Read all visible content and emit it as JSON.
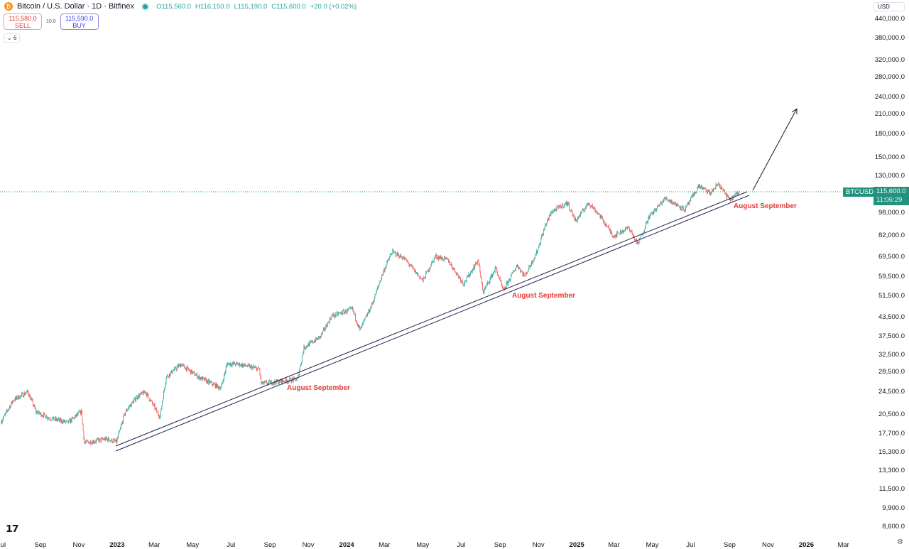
{
  "header": {
    "symbol_title": "Bitcoin / U.S. Dollar · 1D · Bitfinex",
    "open": "O115,560.0",
    "high": "H116,150.0",
    "low": "L115,190.0",
    "close": "C115,600.0",
    "change": "+20.0 (+0.02%)",
    "coin_glyph": "₿"
  },
  "trade": {
    "sell_price": "115,580.0",
    "sell_label": "SELL",
    "spread": "10.0",
    "buy_price": "115,590.0",
    "buy_label": "BUY"
  },
  "indicators_toggle": "6",
  "currency": "USD",
  "price_tag": {
    "symbol": "BTCUSD",
    "price": "115,600.0",
    "countdown": "11:06:29"
  },
  "annotations": [
    "August September",
    "August September",
    "August September"
  ],
  "colors": {
    "up": "#26a69a",
    "down": "#ef5350",
    "annotation": "#e53935",
    "tag": "#22917e"
  },
  "logo": "TV",
  "chart_data": {
    "type": "candlestick",
    "scale": "log",
    "y_ticks": [
      440000,
      380000,
      320000,
      280000,
      240000,
      210000,
      180000,
      150000,
      130000,
      98000,
      82000,
      69500,
      59500,
      51500,
      43500,
      37500,
      32500,
      28500,
      24500,
      20500,
      17700,
      15300,
      13300,
      11500,
      9900,
      8600
    ],
    "y_tick_labels": [
      "440,000.0",
      "380,000.0",
      "320,000.0",
      "280,000.0",
      "240,000.0",
      "210,000.0",
      "180,000.0",
      "150,000.0",
      "130,000.0",
      "98,000.0",
      "82,000.0",
      "69,500.0",
      "59,500.0",
      "51,500.0",
      "43,500.0",
      "37,500.0",
      "32,500.0",
      "28,500.0",
      "24,500.0",
      "20,500.0",
      "17,700.0",
      "15,300.0",
      "13,300.0",
      "11,500.0",
      "9,900.0",
      "8,600.0"
    ],
    "x_ticks": [
      [
        "2022-07-01",
        "Jul"
      ],
      [
        "2022-09-01",
        "Sep"
      ],
      [
        "2022-11-01",
        "Nov"
      ],
      [
        "2023-01-01",
        "2023"
      ],
      [
        "2023-03-01",
        "Mar"
      ],
      [
        "2023-05-01",
        "May"
      ],
      [
        "2023-07-01",
        "Jul"
      ],
      [
        "2023-09-01",
        "Sep"
      ],
      [
        "2023-11-01",
        "Nov"
      ],
      [
        "2024-01-01",
        "2024"
      ],
      [
        "2024-03-01",
        "Mar"
      ],
      [
        "2024-05-01",
        "May"
      ],
      [
        "2024-07-01",
        "Jul"
      ],
      [
        "2024-09-01",
        "Sep"
      ],
      [
        "2024-11-01",
        "Nov"
      ],
      [
        "2025-01-01",
        "2025"
      ],
      [
        "2025-03-01",
        "Mar"
      ],
      [
        "2025-05-01",
        "May"
      ],
      [
        "2025-07-01",
        "Jul"
      ],
      [
        "2025-09-01",
        "Sep"
      ],
      [
        "2025-11-01",
        "Nov"
      ],
      [
        "2026-01-01",
        "2026"
      ],
      [
        "2026-03-01",
        "Mar"
      ]
    ],
    "close_anchors": [
      [
        "2022-07-01",
        19500
      ],
      [
        "2022-07-20",
        23000
      ],
      [
        "2022-08-12",
        24500
      ],
      [
        "2022-08-25",
        21000
      ],
      [
        "2022-09-15",
        20000
      ],
      [
        "2022-10-15",
        19300
      ],
      [
        "2022-11-05",
        21000
      ],
      [
        "2022-11-10",
        16500
      ],
      [
        "2022-12-15",
        17000
      ],
      [
        "2022-12-31",
        16600
      ],
      [
        "2023-01-14",
        21000
      ],
      [
        "2023-02-01",
        23500
      ],
      [
        "2023-02-15",
        24500
      ],
      [
        "2023-03-10",
        20200
      ],
      [
        "2023-03-20",
        27500
      ],
      [
        "2023-04-12",
        30300
      ],
      [
        "2023-05-10",
        27500
      ],
      [
        "2023-06-15",
        25200
      ],
      [
        "2023-06-25",
        30500
      ],
      [
        "2023-07-15",
        30300
      ],
      [
        "2023-08-15",
        29200
      ],
      [
        "2023-08-18",
        26100
      ],
      [
        "2023-09-15",
        26500
      ],
      [
        "2023-10-15",
        27000
      ],
      [
        "2023-10-25",
        34500
      ],
      [
        "2023-11-20",
        37500
      ],
      [
        "2023-12-08",
        44000
      ],
      [
        "2024-01-10",
        46500
      ],
      [
        "2024-01-22",
        39500
      ],
      [
        "2024-02-10",
        48000
      ],
      [
        "2024-02-28",
        62000
      ],
      [
        "2024-03-13",
        72500
      ],
      [
        "2024-04-01",
        69000
      ],
      [
        "2024-05-01",
        58000
      ],
      [
        "2024-05-21",
        70000
      ],
      [
        "2024-06-10",
        68000
      ],
      [
        "2024-07-05",
        56500
      ],
      [
        "2024-07-28",
        68000
      ],
      [
        "2024-08-05",
        53000
      ],
      [
        "2024-08-25",
        64000
      ],
      [
        "2024-09-06",
        53500
      ],
      [
        "2024-09-28",
        65500
      ],
      [
        "2024-10-10",
        60000
      ],
      [
        "2024-10-29",
        72000
      ],
      [
        "2024-11-12",
        89000
      ],
      [
        "2024-11-22",
        99000
      ],
      [
        "2024-12-17",
        106000
      ],
      [
        "2024-12-30",
        92000
      ],
      [
        "2025-01-20",
        106000
      ],
      [
        "2025-02-05",
        97000
      ],
      [
        "2025-02-28",
        82000
      ],
      [
        "2025-03-25",
        87500
      ],
      [
        "2025-04-08",
        76500
      ],
      [
        "2025-04-25",
        94500
      ],
      [
        "2025-05-22",
        110000
      ],
      [
        "2025-06-22",
        100500
      ],
      [
        "2025-07-14",
        121000
      ],
      [
        "2025-08-01",
        114000
      ],
      [
        "2025-08-14",
        123000
      ],
      [
        "2025-09-01",
        108000
      ],
      [
        "2025-09-16",
        115600
      ]
    ],
    "trendlines": [
      {
        "from": [
          "2023-01-01",
          15000
        ],
        "to": [
          "2025-10-15",
          110000
        ]
      }
    ]
  }
}
